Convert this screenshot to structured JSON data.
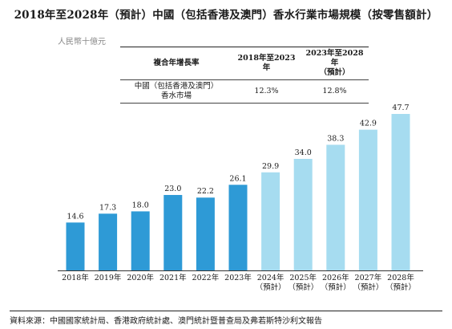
{
  "title": "2018年至2028年（預計）中國（包括香港及澳門）香水行業市場規模（按零售額計）",
  "unit_label": "人民幣十億元",
  "cagr_table": {
    "header": [
      "複合年增長率",
      "2018年至2023年",
      "2023年至2028年\n（預計）"
    ],
    "row_label": "中國（包括香港及澳門）\n香水市場",
    "values": [
      "12.3%",
      "12.8%"
    ]
  },
  "chart_data": {
    "type": "bar",
    "categories": [
      "2018年",
      "2019年",
      "2020年",
      "2021年",
      "2022年",
      "2023年",
      "2024年\n（預計）",
      "2025年\n（預計）",
      "2026年\n（預計）",
      "2027年\n（預計）",
      "2028年\n（預計）"
    ],
    "values": [
      14.6,
      17.3,
      18.0,
      23.0,
      22.2,
      26.1,
      29.9,
      34.0,
      38.3,
      42.9,
      47.7
    ],
    "value_labels": [
      "14.6",
      "17.3",
      "18.0",
      "23.0",
      "22.2",
      "26.1",
      "29.9",
      "34.0",
      "38.3",
      "42.9",
      "47.7"
    ],
    "historical_color": "#2e9ad6",
    "forecast_color": "#a6dcf0",
    "forecast_from_index": 6,
    "grid": false,
    "legend": "none"
  },
  "source": "資料來源：中國國家統計局、香港政府統計處、澳門統計暨普查局及弗若斯特沙利文報告"
}
